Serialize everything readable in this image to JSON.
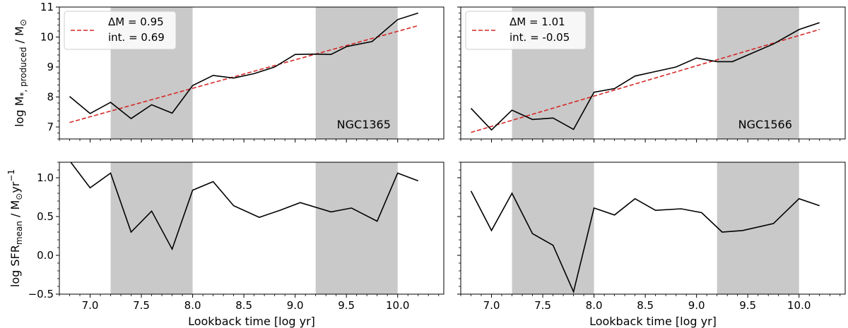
{
  "colors": {
    "shade": "#c9c9c9",
    "line": "#000000",
    "fit": "#d62728",
    "frame": "#000000",
    "background": "#ffffff"
  },
  "chart_data": [
    {
      "type": "line",
      "panel": "top-left",
      "galaxy_label": "NGC1365",
      "ylabel": "log M*,produced / M⊙",
      "ylabel_parts": {
        "main": "log M",
        "sub": "*, produced",
        "tail": " / M",
        "sun": "⊙"
      },
      "xlabel": "",
      "xlim": [
        6.7,
        10.45
      ],
      "ylim": [
        6.6,
        11.0
      ],
      "yticks": [
        7,
        8,
        9,
        10,
        11
      ],
      "ytick_labels": [
        "7",
        "8",
        "9",
        "10",
        "11"
      ],
      "xticks": [
        7.0,
        7.5,
        8.0,
        8.5,
        9.0,
        9.5,
        10.0
      ],
      "xtick_labels": [],
      "shaded_ranges": [
        [
          7.2,
          8.0
        ],
        [
          9.2,
          10.0
        ]
      ],
      "series": [
        {
          "name": "mass",
          "x": [
            6.8,
            7.0,
            7.2,
            7.4,
            7.6,
            7.8,
            8.0,
            8.2,
            8.4,
            8.6,
            8.8,
            9.0,
            9.2,
            9.35,
            9.5,
            9.75,
            10.0,
            10.2
          ],
          "y": [
            8.02,
            7.45,
            7.82,
            7.28,
            7.74,
            7.46,
            8.38,
            8.72,
            8.63,
            8.78,
            9.0,
            9.42,
            9.43,
            9.42,
            9.68,
            9.85,
            10.58,
            10.8
          ]
        }
      ],
      "fit": {
        "slope": 0.95,
        "intercept": 0.69,
        "x_range": [
          6.8,
          10.2
        ]
      },
      "legend": {
        "position": "top-left",
        "line1": "ΔM = 0.95",
        "line2": "int. = 0.69"
      }
    },
    {
      "type": "line",
      "panel": "top-right",
      "galaxy_label": "NGC1566",
      "ylabel": "",
      "xlabel": "",
      "xlim": [
        6.7,
        10.45
      ],
      "ylim": [
        6.6,
        11.0
      ],
      "yticks": [
        7,
        8,
        9,
        10,
        11
      ],
      "ytick_labels": [],
      "xticks": [
        7.0,
        7.5,
        8.0,
        8.5,
        9.0,
        9.5,
        10.0
      ],
      "xtick_labels": [],
      "shaded_ranges": [
        [
          7.2,
          8.0
        ],
        [
          9.2,
          10.0
        ]
      ],
      "series": [
        {
          "name": "mass",
          "x": [
            6.8,
            7.0,
            7.2,
            7.4,
            7.6,
            7.8,
            8.0,
            8.2,
            8.4,
            8.6,
            8.8,
            9.0,
            9.2,
            9.35,
            9.5,
            9.75,
            10.0,
            10.2
          ],
          "y": [
            7.62,
            6.9,
            7.56,
            7.25,
            7.3,
            6.92,
            8.16,
            8.28,
            8.7,
            8.85,
            9.0,
            9.3,
            9.18,
            9.18,
            9.4,
            9.77,
            10.25,
            10.48
          ]
        }
      ],
      "fit": {
        "slope": 1.01,
        "intercept": -0.05,
        "x_range": [
          6.8,
          10.2
        ]
      },
      "legend": {
        "position": "top-left",
        "line1": "ΔM = 1.01",
        "line2": "int. = -0.05"
      }
    },
    {
      "type": "line",
      "panel": "bottom-left",
      "ylabel": "log SFRmean / M⊙yr−1",
      "ylabel_parts": {
        "main": "log SFR",
        "sub": "mean",
        "tail": " / M",
        "sun": "⊙",
        "unit": "yr",
        "sup": "−1"
      },
      "xlabel": "Lookback time [log yr]",
      "xlim": [
        6.7,
        10.45
      ],
      "ylim": [
        -0.5,
        1.2
      ],
      "yticks": [
        -0.5,
        0.0,
        0.5,
        1.0
      ],
      "ytick_labels": [
        "−0.5",
        "0.0",
        "0.5",
        "1.0"
      ],
      "xticks": [
        7.0,
        7.5,
        8.0,
        8.5,
        9.0,
        9.5,
        10.0
      ],
      "xtick_labels": [
        "7.0",
        "7.5",
        "8.0",
        "8.5",
        "9.0",
        "9.5",
        "10.0"
      ],
      "shaded_ranges": [
        [
          7.2,
          8.0
        ],
        [
          9.2,
          10.0
        ]
      ],
      "series": [
        {
          "name": "sfr",
          "x": [
            6.8,
            7.0,
            7.2,
            7.4,
            7.6,
            7.8,
            8.0,
            8.2,
            8.4,
            8.65,
            8.85,
            9.05,
            9.35,
            9.55,
            9.8,
            10.0,
            10.2
          ],
          "y": [
            1.22,
            0.87,
            1.06,
            0.3,
            0.57,
            0.08,
            0.84,
            0.95,
            0.64,
            0.49,
            0.58,
            0.68,
            0.56,
            0.61,
            0.44,
            1.06,
            0.96
          ]
        }
      ]
    },
    {
      "type": "line",
      "panel": "bottom-right",
      "ylabel": "",
      "xlabel": "Lookback time [log yr]",
      "xlim": [
        6.7,
        10.45
      ],
      "ylim": [
        -0.5,
        1.2
      ],
      "yticks": [
        -0.5,
        0.0,
        0.5,
        1.0
      ],
      "ytick_labels": [],
      "xticks": [
        7.0,
        7.5,
        8.0,
        8.5,
        9.0,
        9.5,
        10.0
      ],
      "xtick_labels": [
        "7.0",
        "7.5",
        "8.0",
        "8.5",
        "9.0",
        "9.5",
        "10.0"
      ],
      "shaded_ranges": [
        [
          7.2,
          8.0
        ],
        [
          9.2,
          10.0
        ]
      ],
      "series": [
        {
          "name": "sfr",
          "x": [
            6.8,
            7.0,
            7.2,
            7.4,
            7.6,
            7.8,
            8.0,
            8.2,
            8.4,
            8.6,
            8.85,
            9.05,
            9.25,
            9.45,
            9.75,
            10.0,
            10.2
          ],
          "y": [
            0.83,
            0.32,
            0.8,
            0.28,
            0.13,
            -0.47,
            0.61,
            0.52,
            0.73,
            0.58,
            0.6,
            0.55,
            0.3,
            0.32,
            0.41,
            0.73,
            0.64
          ]
        }
      ]
    }
  ]
}
